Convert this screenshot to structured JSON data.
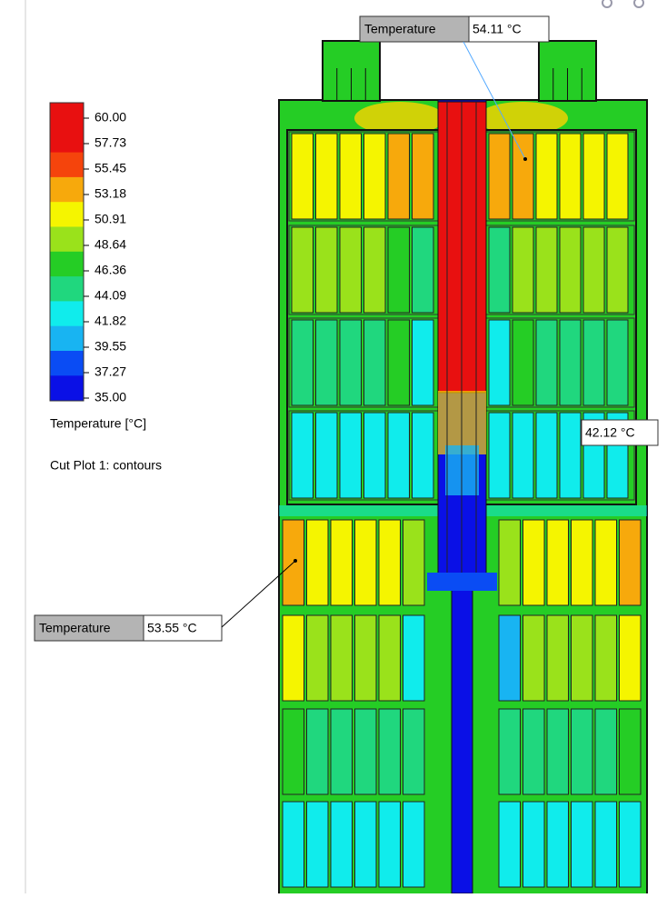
{
  "legend": {
    "labels": [
      "60.00",
      "57.73",
      "55.45",
      "53.18",
      "50.91",
      "48.64",
      "46.36",
      "44.09",
      "41.82",
      "39.55",
      "37.27",
      "35.00"
    ],
    "title": "Temperature [°C]"
  },
  "plot_name": "Cut Plot 1: contours",
  "probes": [
    {
      "label": "Temperature",
      "value": "54.11 °C"
    },
    {
      "value": "42.12 °C"
    },
    {
      "label": "Temperature",
      "value": "53.55 °C"
    }
  ]
}
